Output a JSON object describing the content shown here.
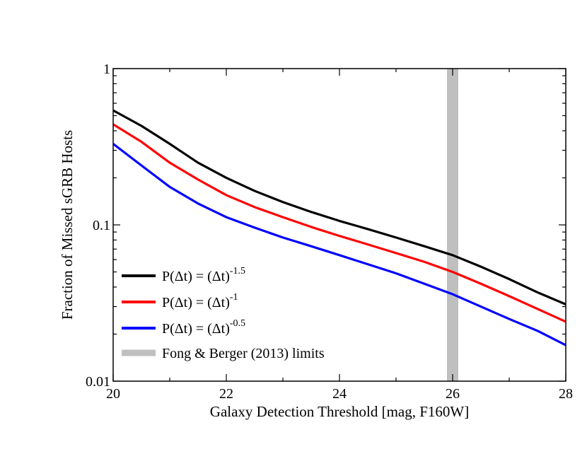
{
  "chart_data": {
    "type": "line",
    "xlabel": "Galaxy Detection Threshold [mag, F160W]",
    "ylabel": "Fraction of Missed sGRB Hosts",
    "xlim": [
      20,
      28
    ],
    "ylim": [
      0.01,
      1
    ],
    "yscale": "log",
    "x_ticks": [
      20,
      22,
      24,
      26,
      28
    ],
    "x_tick_labels": [
      "20",
      "22",
      "24",
      "26",
      "28"
    ],
    "y_ticks": [
      0.01,
      0.1,
      1
    ],
    "y_tick_labels": [
      "0.01",
      "0.1",
      "1"
    ],
    "grid": false,
    "legend_position": "bottom-left",
    "series": [
      {
        "name_base": "P(Δt) = (Δt)",
        "name_exp": "-1.5",
        "color": "#000000",
        "x": [
          20,
          20.5,
          21,
          21.5,
          22,
          22.5,
          23,
          23.5,
          24,
          24.5,
          25,
          25.5,
          26,
          26.5,
          27,
          27.5,
          28
        ],
        "y": [
          0.54,
          0.43,
          0.33,
          0.25,
          0.2,
          0.165,
          0.14,
          0.121,
          0.106,
          0.094,
          0.083,
          0.073,
          0.064,
          0.054,
          0.045,
          0.037,
          0.031
        ]
      },
      {
        "name_base": "P(Δt) = (Δt)",
        "name_exp": "-1",
        "color": "#ff0000",
        "x": [
          20,
          20.5,
          21,
          21.5,
          22,
          22.5,
          23,
          23.5,
          24,
          24.5,
          25,
          25.5,
          26,
          26.5,
          27,
          27.5,
          28
        ],
        "y": [
          0.44,
          0.34,
          0.25,
          0.195,
          0.155,
          0.13,
          0.112,
          0.097,
          0.085,
          0.075,
          0.066,
          0.058,
          0.05,
          0.042,
          0.035,
          0.029,
          0.024
        ]
      },
      {
        "name_base": "P(Δt) = (Δt)",
        "name_exp": "-0.5",
        "color": "#0000ff",
        "x": [
          20,
          20.5,
          21,
          21.5,
          22,
          22.5,
          23,
          23.5,
          24,
          24.5,
          25,
          25.5,
          26,
          26.5,
          27,
          27.5,
          28
        ],
        "y": [
          0.33,
          0.24,
          0.175,
          0.137,
          0.112,
          0.096,
          0.083,
          0.073,
          0.064,
          0.056,
          0.049,
          0.042,
          0.036,
          0.03,
          0.025,
          0.021,
          0.017
        ]
      }
    ],
    "band": {
      "label": "Fong & Berger (2013) limits",
      "x_range": [
        25.9,
        26.1
      ],
      "color": "#bfbfbf"
    }
  }
}
